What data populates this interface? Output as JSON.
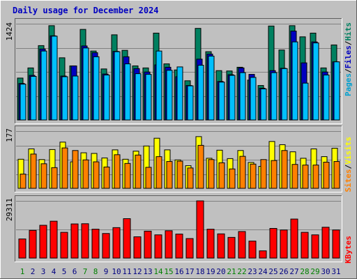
{
  "chart_data": [
    {
      "type": "bar",
      "title": "Daily usage for December 2024",
      "ylabel_max": "1424",
      "y_max": 1424,
      "legend": [
        {
          "name": "Pages",
          "color": "#00a0d0"
        },
        {
          "name": "Files",
          "color": "#0000c0"
        },
        {
          "name": "Hits",
          "color": "#008060"
        }
      ],
      "x_labels": [
        "1",
        "2",
        "3",
        "4",
        "5",
        "6",
        "7",
        "8",
        "9",
        "10",
        "11",
        "12",
        "13",
        "14",
        "15",
        "16",
        "17",
        "18",
        "19",
        "20",
        "21",
        "22",
        "23",
        "24",
        "25",
        "26",
        "27",
        "28",
        "29",
        "30",
        "31"
      ],
      "x_label_colors": [
        "#008000",
        "#000080",
        "#000080",
        "#000080",
        "#000080",
        "#000080",
        "#008000",
        "#008000",
        "#000080",
        "#000080",
        "#000080",
        "#000080",
        "#000080",
        "#008000",
        "#008000",
        "#000080",
        "#000080",
        "#000080",
        "#000080",
        "#000080",
        "#008000",
        "#008000",
        "#000080",
        "#000080",
        "#000080",
        "#000080",
        "#000080",
        "#008000",
        "#008000",
        "#000080",
        "#000080"
      ],
      "series": [
        {
          "name": "Hits",
          "values": [
            620,
            770,
            1100,
            1395,
            920,
            800,
            1340,
            1020,
            755,
            1260,
            1030,
            800,
            770,
            1285,
            830,
            740,
            580,
            1355,
            1010,
            730,
            725,
            780,
            590,
            510,
            1390,
            1035,
            1395,
            1230,
            1285,
            770,
            1110
          ]
        },
        {
          "name": "Files",
          "values": [
            540,
            660,
            1050,
            1245,
            650,
            800,
            1095,
            995,
            680,
            1015,
            935,
            760,
            710,
            815,
            780,
            640,
            510,
            900,
            975,
            570,
            670,
            770,
            675,
            470,
            730,
            765,
            1315,
            845,
            1155,
            710,
            860
          ]
        },
        {
          "name": "Pages",
          "values": [
            530,
            645,
            1020,
            1240,
            640,
            650,
            1065,
            935,
            665,
            1010,
            830,
            685,
            675,
            1020,
            735,
            785,
            505,
            810,
            945,
            560,
            660,
            700,
            630,
            460,
            700,
            760,
            1155,
            545,
            1140,
            665,
            860
          ]
        }
      ]
    },
    {
      "type": "bar",
      "ylabel_max": "177",
      "y_max": 177,
      "legend": [
        {
          "name": "Sites",
          "color": "#ff8000"
        },
        {
          "name": "Visits",
          "color": "#ffff00"
        }
      ],
      "series": [
        {
          "name": "Visits",
          "values": [
            90,
            122,
            89,
            120,
            143,
            82,
            110,
            108,
            94,
            119,
            90,
            115,
            131,
            155,
            119,
            88,
            70,
            160,
            93,
            118,
            92,
            117,
            80,
            68,
            145,
            135,
            113,
            93,
            122,
            98,
            124
          ]
        },
        {
          "name": "Sites",
          "values": [
            44,
            106,
            76,
            64,
            125,
            117,
            88,
            82,
            66,
            104,
            77,
            103,
            65,
            98,
            83,
            84,
            63,
            133,
            89,
            79,
            60,
            99,
            75,
            89,
            86,
            117,
            74,
            72,
            72,
            81,
            83
          ]
        }
      ]
    },
    {
      "type": "bar",
      "ylabel_max": "29311",
      "y_max": 29311,
      "legend": [
        {
          "name": "KBytes",
          "color": "#ff0000"
        }
      ],
      "series": [
        {
          "name": "KBytes",
          "values": [
            9800,
            14200,
            16800,
            18900,
            13200,
            17500,
            17600,
            14800,
            12600,
            15600,
            20200,
            10900,
            13800,
            11900,
            14000,
            12300,
            10000,
            29311,
            14800,
            12400,
            10600,
            13600,
            8700,
            3700,
            15200,
            14400,
            20000,
            13200,
            11900,
            15800,
            14400
          ]
        }
      ]
    }
  ]
}
